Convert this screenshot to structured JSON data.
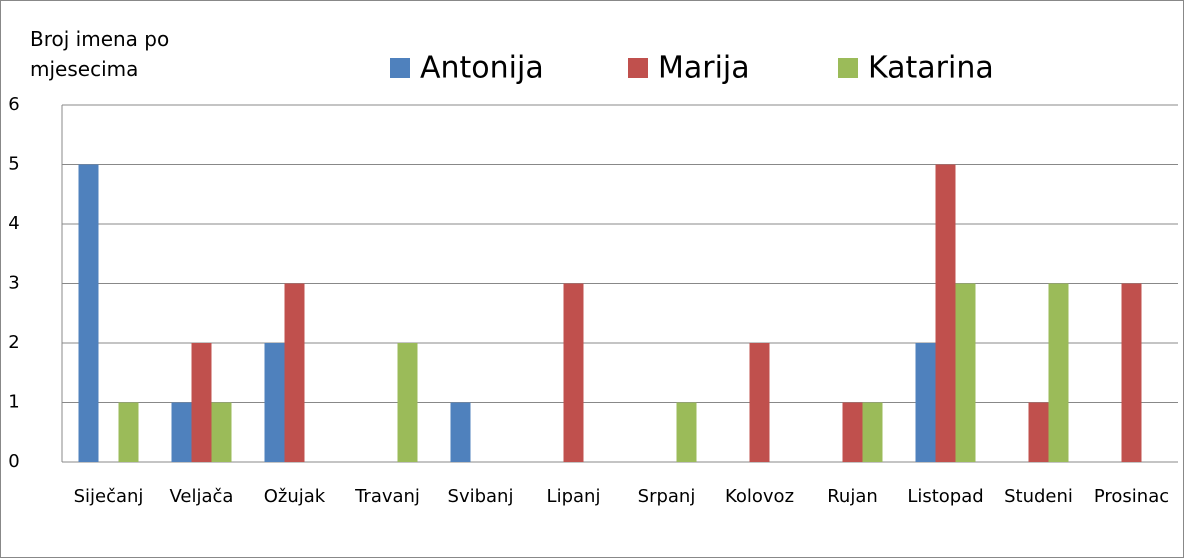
{
  "chart_data": {
    "type": "bar",
    "y_label": "Broj imena po mjesecima",
    "categories": [
      "Siječanj",
      "Veljača",
      "Ožujak",
      "Travanj",
      "Svibanj",
      "Lipanj",
      "Srpanj",
      "Kolovoz",
      "Rujan",
      "Listopad",
      "Studeni",
      "Prosinac"
    ],
    "series": [
      {
        "name": "Antonija",
        "color": "#4f81bd",
        "values": [
          5,
          1,
          2,
          0,
          1,
          0,
          0,
          0,
          0,
          2,
          0,
          0
        ]
      },
      {
        "name": "Marija",
        "color": "#c0504d",
        "values": [
          0,
          2,
          3,
          0,
          0,
          3,
          0,
          2,
          1,
          5,
          1,
          3
        ]
      },
      {
        "name": "Katarina",
        "color": "#9bbb59",
        "values": [
          1,
          1,
          0,
          2,
          0,
          0,
          1,
          0,
          1,
          3,
          3,
          0
        ]
      }
    ],
    "ylim": [
      0,
      6
    ],
    "yticks": [
      0,
      1,
      2,
      3,
      4,
      5,
      6
    ],
    "grid": true
  }
}
